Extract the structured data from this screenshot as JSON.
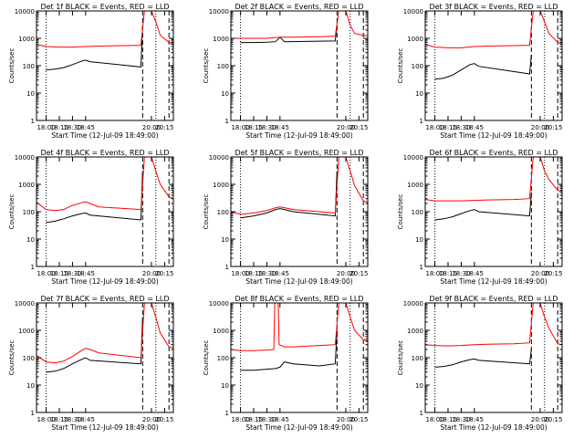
{
  "chart_data": [
    {
      "type": "line",
      "title": "Det 1f BLACK = Events, RED = LLD",
      "xlabel": "Start Time (12-Jul-09 18:49:00)",
      "ylabel": "Counts/sec",
      "ylim": [
        1,
        10000
      ],
      "yscale": "log",
      "xlim": [
        "17:49",
        "20:25"
      ],
      "xticks": [
        "18:00",
        "18:15",
        "18:30",
        "18:45",
        "20:00",
        "20:15"
      ],
      "yticks": [
        "1",
        "10",
        "100",
        "1000",
        "10000"
      ],
      "dotted_lines": [
        "18:00",
        "20:05"
      ],
      "dashed_lines": [
        "19:50",
        "20:20"
      ],
      "series": [
        {
          "color": "#000000",
          "x": [
            "18:00",
            "18:10",
            "18:20",
            "18:30",
            "18:40",
            "18:45",
            "18:50",
            "19:48",
            "19:50"
          ],
          "values": [
            70,
            75,
            85,
            110,
            145,
            160,
            140,
            90,
            3000
          ]
        },
        {
          "color": "#ff0000",
          "x": [
            "17:49",
            "18:00",
            "18:15",
            "18:30",
            "18:45",
            "19:00",
            "19:30",
            "19:48",
            "19:52",
            "20:00",
            "20:05",
            "20:10",
            "20:20",
            "20:25"
          ],
          "values": [
            600,
            500,
            480,
            480,
            500,
            520,
            540,
            560,
            10000,
            12000,
            4000,
            1300,
            700,
            650
          ]
        }
      ]
    },
    {
      "type": "line",
      "title": "Det 2f BLACK = Events, RED = LLD",
      "xlabel": "Start Time (12-Jul-09 18:49:00)",
      "ylabel": "Counts/sec",
      "ylim": [
        1,
        10000
      ],
      "yscale": "log",
      "xlim": [
        "17:49",
        "20:25"
      ],
      "xticks": [
        "18:00",
        "18:15",
        "18:30",
        "18:45",
        "20:00",
        "20:15"
      ],
      "yticks": [
        "1",
        "10",
        "100",
        "1000",
        "10000"
      ],
      "dotted_lines": [
        "18:00",
        "20:05"
      ],
      "dashed_lines": [
        "19:50",
        "20:20"
      ],
      "series": [
        {
          "color": "#000000",
          "x": [
            "18:00",
            "18:15",
            "18:30",
            "18:40",
            "18:45",
            "18:50",
            "19:48",
            "19:50"
          ],
          "values": [
            700,
            700,
            720,
            750,
            1100,
            750,
            800,
            3000
          ]
        },
        {
          "color": "#ff0000",
          "x": [
            "17:49",
            "18:00",
            "18:15",
            "18:30",
            "18:45",
            "19:00",
            "19:30",
            "19:48",
            "19:52",
            "20:00",
            "20:05",
            "20:10",
            "20:20",
            "20:25"
          ],
          "values": [
            1000,
            1000,
            1000,
            1000,
            1100,
            1100,
            1150,
            1200,
            10000,
            12000,
            3000,
            1500,
            1300,
            1250
          ]
        }
      ]
    },
    {
      "type": "line",
      "title": "Det 3f BLACK = Events, RED = LLD",
      "xlabel": "Start Time (12-Jul-09 18:49:00)",
      "ylabel": "Counts/sec",
      "ylim": [
        1,
        10000
      ],
      "yscale": "log",
      "xlim": [
        "17:49",
        "20:25"
      ],
      "xticks": [
        "18:00",
        "18:15",
        "18:30",
        "18:45",
        "20:00",
        "20:15"
      ],
      "yticks": [
        "1",
        "10",
        "100",
        "1000",
        "10000"
      ],
      "dotted_lines": [
        "18:00",
        "20:05"
      ],
      "dashed_lines": [
        "19:50",
        "20:20"
      ],
      "series": [
        {
          "color": "#000000",
          "x": [
            "18:00",
            "18:10",
            "18:20",
            "18:30",
            "18:40",
            "18:45",
            "18:50",
            "19:48",
            "19:50"
          ],
          "values": [
            32,
            35,
            45,
            70,
            110,
            120,
            95,
            50,
            250
          ]
        },
        {
          "color": "#ff0000",
          "x": [
            "17:49",
            "18:00",
            "18:15",
            "18:30",
            "18:45",
            "19:00",
            "19:30",
            "19:48",
            "19:52",
            "20:00",
            "20:05",
            "20:10",
            "20:20",
            "20:25"
          ],
          "values": [
            600,
            480,
            450,
            450,
            500,
            520,
            540,
            560,
            10000,
            12000,
            4000,
            1500,
            700,
            650
          ]
        }
      ]
    },
    {
      "type": "line",
      "title": "Det 4f BLACK = Events, RED = LLD",
      "xlabel": "Start Time (12-Jul-09 18:49:00)",
      "ylabel": "Counts/sec",
      "ylim": [
        1,
        10000
      ],
      "yscale": "log",
      "xlim": [
        "17:49",
        "20:25"
      ],
      "xticks": [
        "18:00",
        "18:15",
        "18:30",
        "18:45",
        "20:00",
        "20:15"
      ],
      "yticks": [
        "1",
        "10",
        "100",
        "1000",
        "10000"
      ],
      "dotted_lines": [
        "18:00",
        "20:05"
      ],
      "dashed_lines": [
        "19:50",
        "20:20"
      ],
      "series": [
        {
          "color": "#000000",
          "x": [
            "18:00",
            "18:10",
            "18:20",
            "18:30",
            "18:40",
            "18:45",
            "18:50",
            "19:48",
            "19:50"
          ],
          "values": [
            40,
            45,
            55,
            70,
            85,
            90,
            75,
            50,
            3000
          ]
        },
        {
          "color": "#ff0000",
          "x": [
            "17:49",
            "18:00",
            "18:10",
            "18:20",
            "18:30",
            "18:40",
            "18:45",
            "18:50",
            "19:00",
            "19:48",
            "19:52",
            "20:00",
            "20:05",
            "20:10",
            "20:20",
            "20:25"
          ],
          "values": [
            220,
            120,
            110,
            120,
            170,
            210,
            230,
            200,
            150,
            120,
            10000,
            12000,
            3000,
            1000,
            350,
            300
          ]
        }
      ]
    },
    {
      "type": "line",
      "title": "Det 5f BLACK = Events, RED = LLD",
      "xlabel": "Start Time (12-Jul-09 18:49:00)",
      "ylabel": "Counts/sec",
      "ylim": [
        1,
        10000
      ],
      "yscale": "log",
      "xlim": [
        "17:49",
        "20:25"
      ],
      "xticks": [
        "18:00",
        "18:15",
        "18:30",
        "18:45",
        "20:00",
        "20:15"
      ],
      "yticks": [
        "1",
        "10",
        "100",
        "1000",
        "10000"
      ],
      "dotted_lines": [
        "18:00",
        "20:05"
      ],
      "dashed_lines": [
        "19:50",
        "20:20"
      ],
      "series": [
        {
          "color": "#000000",
          "x": [
            "18:00",
            "18:15",
            "18:30",
            "18:40",
            "18:45",
            "18:50",
            "19:00",
            "19:30",
            "19:48",
            "19:50"
          ],
          "values": [
            60,
            70,
            90,
            120,
            130,
            120,
            100,
            80,
            70,
            3000
          ]
        },
        {
          "color": "#ff0000",
          "x": [
            "17:49",
            "18:00",
            "18:15",
            "18:30",
            "18:40",
            "18:45",
            "18:50",
            "19:00",
            "19:30",
            "19:48",
            "19:52",
            "20:00",
            "20:05",
            "20:10",
            "20:20",
            "20:25"
          ],
          "values": [
            100,
            80,
            90,
            110,
            140,
            150,
            140,
            120,
            100,
            90,
            10000,
            12000,
            3000,
            900,
            250,
            220
          ]
        }
      ]
    },
    {
      "type": "line",
      "title": "Det 6f BLACK = Events, RED = LLD",
      "xlabel": "Start Time (12-Jul-09 18:49:00)",
      "ylabel": "Counts/sec",
      "ylim": [
        1,
        10000
      ],
      "yscale": "log",
      "xlim": [
        "17:49",
        "20:25"
      ],
      "xticks": [
        "18:00",
        "18:15",
        "18:30",
        "18:45",
        "20:00",
        "20:15"
      ],
      "yticks": [
        "1",
        "10",
        "100",
        "1000",
        "10000"
      ],
      "dotted_lines": [
        "18:00",
        "20:05"
      ],
      "dashed_lines": [
        "19:50",
        "20:20"
      ],
      "series": [
        {
          "color": "#000000",
          "x": [
            "18:00",
            "18:10",
            "18:20",
            "18:30",
            "18:40",
            "18:45",
            "18:50",
            "19:48",
            "19:50"
          ],
          "values": [
            50,
            55,
            65,
            85,
            110,
            120,
            100,
            70,
            500
          ]
        },
        {
          "color": "#ff0000",
          "x": [
            "17:49",
            "18:00",
            "18:15",
            "18:30",
            "18:45",
            "19:00",
            "19:30",
            "19:48",
            "19:52",
            "20:00",
            "20:05",
            "20:10",
            "20:20",
            "20:25"
          ],
          "values": [
            280,
            250,
            250,
            250,
            260,
            270,
            280,
            300,
            10000,
            12000,
            3000,
            1500,
            600,
            550
          ]
        }
      ]
    },
    {
      "type": "line",
      "title": "Det 7f BLACK = Events, RED = LLD",
      "xlabel": "Start Time (12-Jul-09 18:49:00)",
      "ylabel": "Counts/sec",
      "ylim": [
        1,
        10000
      ],
      "yscale": "log",
      "xlim": [
        "17:49",
        "20:25"
      ],
      "xticks": [
        "18:00",
        "18:15",
        "18:30",
        "18:45",
        "20:00",
        "20:15"
      ],
      "yticks": [
        "1",
        "10",
        "100",
        "1000",
        "10000"
      ],
      "dotted_lines": [
        "18:00",
        "20:05"
      ],
      "dashed_lines": [
        "19:50",
        "20:20"
      ],
      "series": [
        {
          "color": "#000000",
          "x": [
            "18:00",
            "18:10",
            "18:20",
            "18:30",
            "18:40",
            "18:45",
            "18:50",
            "19:48",
            "19:50"
          ],
          "values": [
            30,
            32,
            40,
            60,
            85,
            100,
            80,
            60,
            3000
          ]
        },
        {
          "color": "#ff0000",
          "x": [
            "17:49",
            "18:00",
            "18:10",
            "18:20",
            "18:30",
            "18:40",
            "18:45",
            "18:50",
            "19:00",
            "19:48",
            "19:52",
            "20:00",
            "20:05",
            "20:10",
            "20:20",
            "20:25"
          ],
          "values": [
            120,
            70,
            65,
            75,
            110,
            180,
            220,
            200,
            150,
            100,
            10000,
            12000,
            3000,
            800,
            250,
            230
          ]
        }
      ]
    },
    {
      "type": "line",
      "title": "Det 8f BLACK = Events, RED = LLD",
      "xlabel": "Start Time (12-Jul-09 18:49:00)",
      "ylabel": "Counts/sec",
      "ylim": [
        1,
        10000
      ],
      "yscale": "log",
      "xlim": [
        "17:49",
        "20:25"
      ],
      "xticks": [
        "18:00",
        "18:15",
        "18:30",
        "18:45",
        "20:00",
        "20:15"
      ],
      "yticks": [
        "1",
        "10",
        "100",
        "1000",
        "10000"
      ],
      "dotted_lines": [
        "18:00",
        "20:05"
      ],
      "dashed_lines": [
        "19:50",
        "20:20"
      ],
      "series": [
        {
          "color": "#000000",
          "x": [
            "18:00",
            "18:15",
            "18:30",
            "18:40",
            "18:45",
            "18:50",
            "19:00",
            "19:30",
            "19:48",
            "19:50"
          ],
          "values": [
            35,
            35,
            38,
            40,
            45,
            70,
            60,
            50,
            60,
            1000
          ]
        },
        {
          "color": "#ff0000",
          "x": [
            "17:49",
            "18:00",
            "18:15",
            "18:30",
            "18:38",
            "18:39",
            "18:43",
            "18:44",
            "18:50",
            "19:00",
            "19:30",
            "19:48",
            "19:52",
            "20:00",
            "20:05",
            "20:10",
            "20:20",
            "20:25"
          ],
          "values": [
            200,
            180,
            180,
            190,
            200,
            10000,
            10000,
            300,
            250,
            250,
            280,
            300,
            10000,
            12000,
            3000,
            1000,
            450,
            420
          ]
        }
      ]
    },
    {
      "type": "line",
      "title": "Det 9f BLACK = Events, RED = LLD",
      "xlabel": "Start Time (12-Jul-09 18:49:00)",
      "ylabel": "Counts/sec",
      "ylim": [
        1,
        10000
      ],
      "yscale": "log",
      "xlim": [
        "17:49",
        "20:25"
      ],
      "xticks": [
        "18:00",
        "18:15",
        "18:30",
        "18:45",
        "20:00",
        "20:15"
      ],
      "yticks": [
        "1",
        "10",
        "100",
        "1000",
        "10000"
      ],
      "dotted_lines": [
        "18:00",
        "20:05"
      ],
      "dashed_lines": [
        "19:50",
        "20:20"
      ],
      "series": [
        {
          "color": "#000000",
          "x": [
            "18:00",
            "18:10",
            "18:20",
            "18:30",
            "18:40",
            "18:45",
            "18:50",
            "19:48",
            "19:50"
          ],
          "values": [
            45,
            48,
            55,
            70,
            85,
            90,
            80,
            60,
            200
          ]
        },
        {
          "color": "#ff0000",
          "x": [
            "17:49",
            "18:00",
            "18:15",
            "18:30",
            "18:45",
            "19:00",
            "19:30",
            "19:48",
            "19:52",
            "20:00",
            "20:05",
            "20:10",
            "20:20",
            "20:25"
          ],
          "values": [
            300,
            280,
            270,
            280,
            300,
            310,
            320,
            350,
            10000,
            12000,
            3000,
            1200,
            320,
            300
          ]
        }
      ]
    }
  ]
}
